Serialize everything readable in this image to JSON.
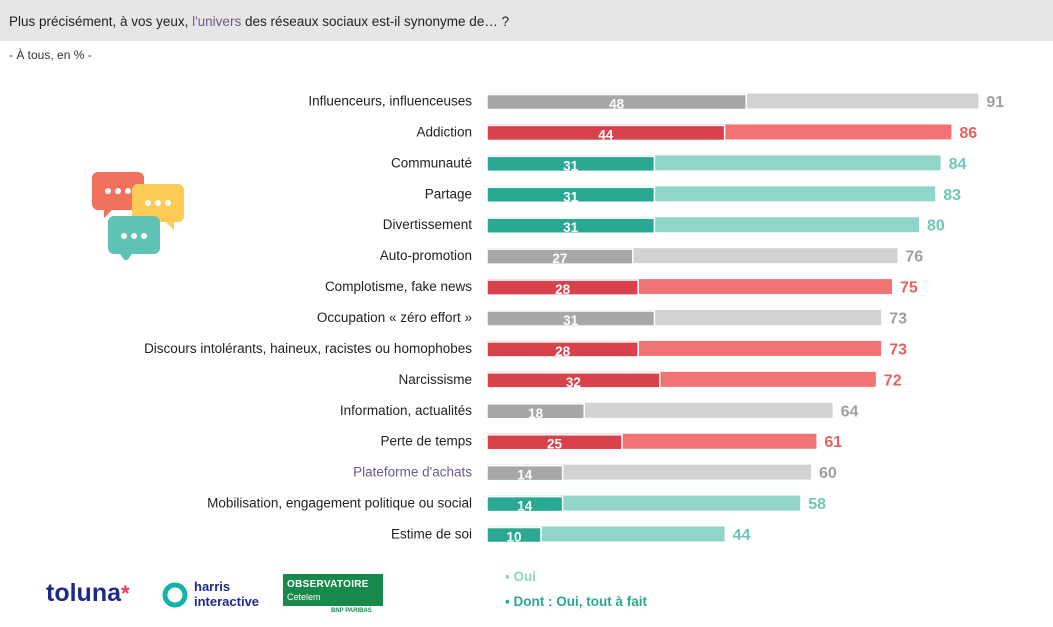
{
  "header": {
    "question_pre": "Plus précisément, à vos yeux, ",
    "question_highlight": "l'univers",
    "question_post": " des réseaux sociaux est-il synonyme de… ?",
    "subtitle": "- À tous, en % -"
  },
  "chart_data": {
    "type": "bar",
    "orientation": "horizontal",
    "title": "",
    "xlabel": "",
    "ylabel": "",
    "xlim": [
      0,
      100
    ],
    "grid": false,
    "legend_position": "bottom",
    "categories": [
      "Influenceurs, influenceuses",
      "Addiction",
      "Communauté",
      "Partage",
      "Divertissement",
      "Auto-promotion",
      "Complotisme, fake news",
      "Occupation « zéro effort »",
      "Discours intolérants, haineux, racistes ou homophobes",
      "Narcissisme",
      "Information, actualités",
      "Perte de temps",
      "Plateforme d'achats",
      "Mobilisation, engagement politique ou social",
      "Estime de soi"
    ],
    "series": [
      {
        "name": "Oui",
        "values": [
          91,
          86,
          84,
          83,
          80,
          76,
          75,
          73,
          73,
          72,
          64,
          61,
          60,
          58,
          44
        ]
      },
      {
        "name": "Dont : Oui, tout à fait",
        "values": [
          48,
          44,
          31,
          31,
          31,
          27,
          28,
          31,
          28,
          32,
          18,
          25,
          14,
          14,
          10
        ]
      }
    ],
    "row_color_group": [
      "gray",
      "red",
      "teal",
      "teal",
      "teal",
      "gray",
      "red",
      "gray",
      "red",
      "red",
      "gray",
      "red",
      "gray",
      "teal",
      "teal"
    ]
  },
  "colors": {
    "gray_light": "#d3d2d2",
    "gray_dark": "#a8a6a6",
    "gray_label": "#a09e9e",
    "red_light": "#f27373",
    "red_dark": "#d9414b",
    "red_label": "#e56060",
    "teal_light": "#8fd6c7",
    "teal_dark": "#2aa891",
    "teal_label": "#6fc8b6",
    "category_gray_label": "#555555",
    "highlight_category_color": "#6d5a8a"
  },
  "highlight_categories": [
    "Plateforme d'achats"
  ],
  "legend": {
    "oui": "▪ Oui",
    "dont": "▪ Dont : Oui, tout à fait",
    "oui_color": "#8fd6c7",
    "dont_color": "#2aa891"
  },
  "logos": {
    "toluna": "toluna",
    "harris_line1": "harris",
    "harris_line2": "interactive",
    "obs_line1": "OBSERVATOIRE",
    "obs_line2": "Cetelem",
    "obs_line3": "BNP PARIBAS"
  }
}
